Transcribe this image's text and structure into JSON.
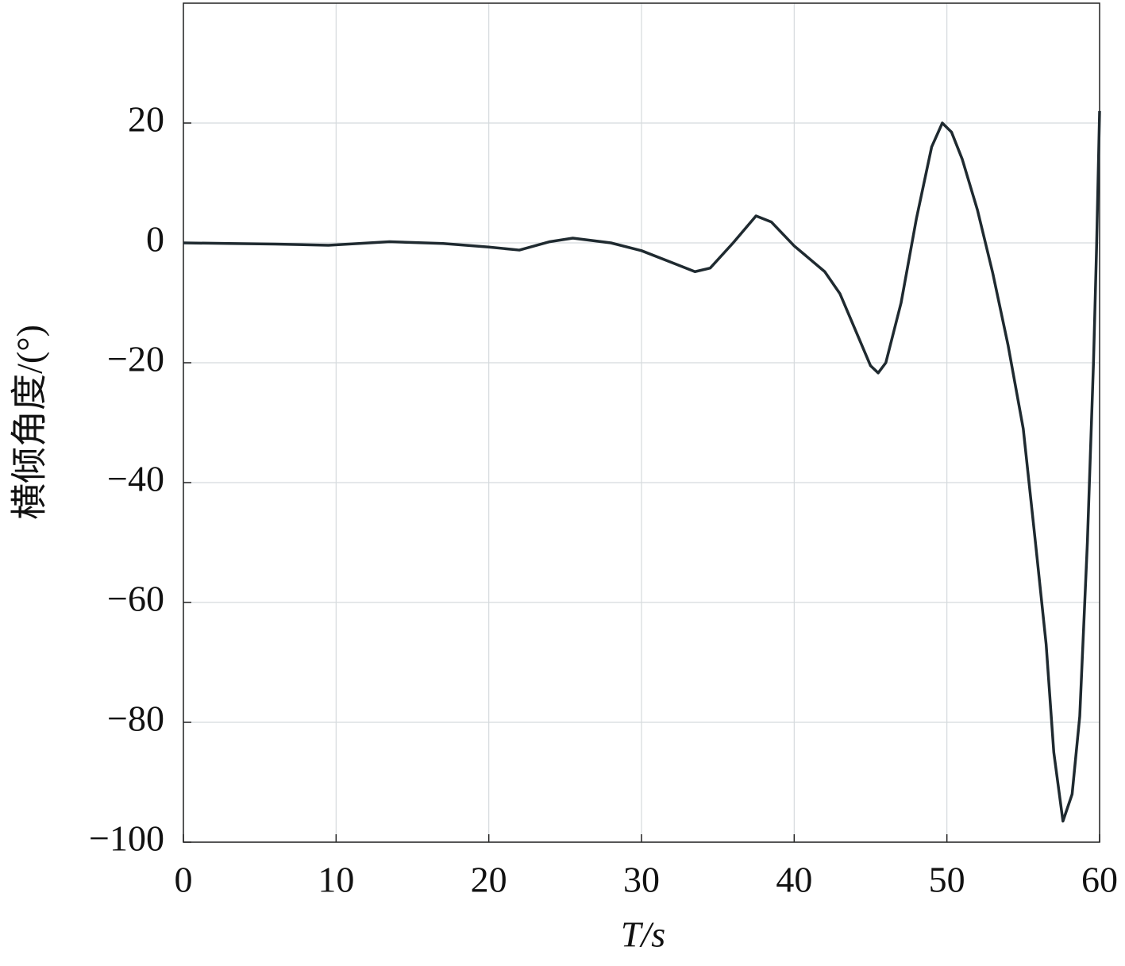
{
  "chart_data": {
    "type": "line",
    "xlabel": "T/s",
    "ylabel": "横倾角度/(°)",
    "x": [
      0,
      3,
      6,
      9.5,
      13.5,
      17,
      20,
      22,
      24,
      25.5,
      28,
      30,
      32,
      33.5,
      34.5,
      36,
      37.5,
      38.5,
      40,
      42,
      43,
      44,
      45,
      45.5,
      46,
      47,
      48,
      49,
      49.7,
      50.3,
      51,
      52,
      53,
      54,
      55,
      55.8,
      56.5,
      57,
      57.6,
      58.2,
      58.7,
      59.2,
      59.6,
      59.8,
      60
    ],
    "series": [
      {
        "color": "#1f2a30",
        "values": [
          0,
          -0.1,
          -0.2,
          -0.4,
          0.2,
          -0.1,
          -0.7,
          -1.2,
          0.2,
          0.8,
          0,
          -1.3,
          -3.3,
          -4.8,
          -4.2,
          0,
          4.5,
          3.5,
          -0.5,
          -4.8,
          -8.5,
          -14.5,
          -20.5,
          -21.7,
          -20,
          -10,
          4,
          16,
          20,
          18.5,
          14,
          5.5,
          -5,
          -17,
          -31,
          -50,
          -67,
          -85,
          -96.5,
          -92,
          -79,
          -50,
          -20,
          -1,
          22
        ]
      }
    ],
    "xlim": [
      0,
      60
    ],
    "xticks": [
      0,
      10,
      20,
      30,
      40,
      50,
      60
    ],
    "ylim": [
      -100,
      40
    ],
    "yticks": [
      {
        "value": -100,
        "label": "−100"
      },
      {
        "value": -80,
        "label": "−80"
      },
      {
        "value": -60,
        "label": "−60"
      },
      {
        "value": -40,
        "label": "−40"
      },
      {
        "value": -20,
        "label": "−20"
      },
      0,
      20
    ],
    "grid": true
  }
}
